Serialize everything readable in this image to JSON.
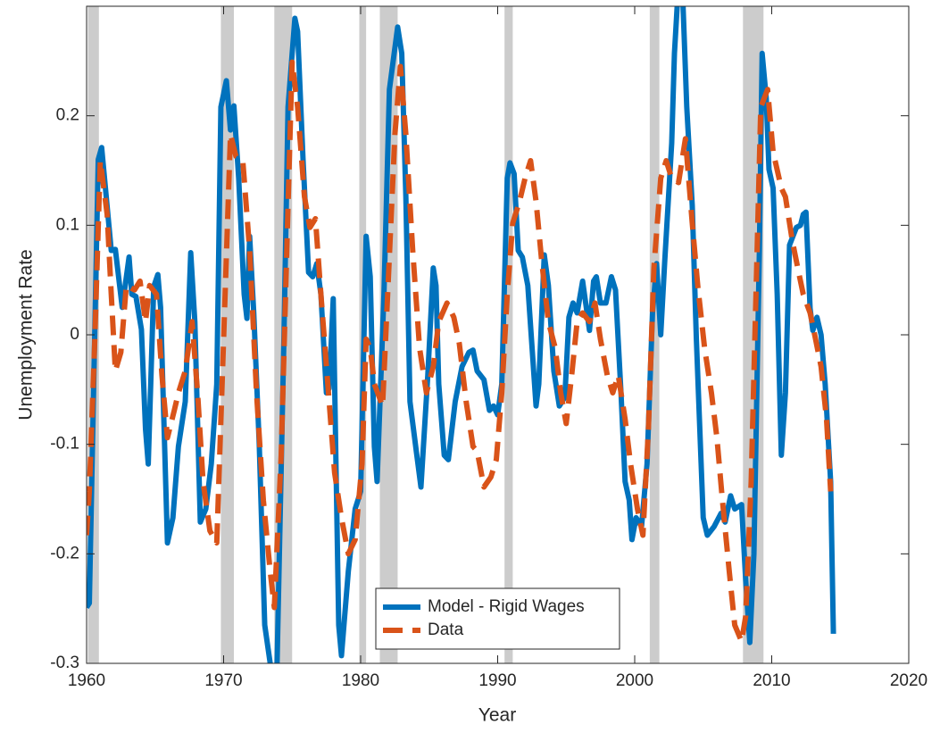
{
  "chart_data": {
    "type": "line",
    "xlabel": "Year",
    "ylabel": "Unemployment Rate",
    "xlim": [
      1960,
      2020
    ],
    "ylim": [
      -0.3,
      0.3
    ],
    "xticks": [
      1960,
      1970,
      1980,
      1990,
      2000,
      2010,
      2020
    ],
    "yticks": [
      -0.3,
      -0.2,
      -0.1,
      0,
      0.1,
      0.2
    ],
    "legend": "lower center",
    "recession_color": "#cccccc",
    "recessions": [
      [
        1960.1,
        1960.9
      ],
      [
        1969.8,
        1970.75
      ],
      [
        1973.7,
        1975.0
      ],
      [
        1979.9,
        1980.4
      ],
      [
        1981.4,
        1982.7
      ],
      [
        1990.5,
        1991.1
      ],
      [
        2001.1,
        2001.8
      ],
      [
        2007.9,
        2009.4
      ]
    ],
    "series": [
      {
        "name": "Model - Rigid Wages",
        "color": "#0072bd",
        "dash": false,
        "x": [
          1960,
          1960.2,
          1960.85,
          1961.1,
          1961.8,
          1962.1,
          1962.6,
          1963.1,
          1963.3,
          1963.6,
          1964.0,
          1964.3,
          1964.5,
          1964.9,
          1965.2,
          1965.4,
          1965.9,
          1966.3,
          1966.7,
          1967.2,
          1967.6,
          1967.9,
          1968.3,
          1968.7,
          1969.1,
          1969.5,
          1969.8,
          1970.2,
          1970.5,
          1970.75,
          1971.1,
          1971.5,
          1971.7,
          1971.9,
          1972.2,
          1972.6,
          1973.0,
          1973.4,
          1973.6,
          1973.9,
          1974.4,
          1974.7,
          1975.2,
          1975.4,
          1975.8,
          1976.2,
          1976.5,
          1976.8,
          1977.1,
          1977.5,
          1977.7,
          1978.0,
          1978.2,
          1978.4,
          1978.6,
          1979.1,
          1979.6,
          1980.0,
          1980.4,
          1980.7,
          1981.0,
          1981.2,
          1981.7,
          1982.1,
          1982.7,
          1983.0,
          1983.3,
          1983.6,
          1984.1,
          1984.4,
          1984.9,
          1985.3,
          1985.5,
          1985.7,
          1986.1,
          1986.4,
          1986.9,
          1987.4,
          1987.9,
          1988.2,
          1988.5,
          1989.0,
          1989.4,
          1989.7,
          1990.0,
          1990.3,
          1990.7,
          1990.9,
          1991.2,
          1991.5,
          1991.8,
          1992.2,
          1992.8,
          1993.0,
          1993.4,
          1993.7,
          1994.1,
          1994.5,
          1994.9,
          1995.2,
          1995.5,
          1995.8,
          1996.2,
          1996.7,
          1997.0,
          1997.2,
          1997.5,
          1997.9,
          1998.3,
          1998.6,
          1999.0,
          1999.3,
          1999.6,
          1999.8,
          2000.1,
          2000.5,
          2000.9,
          2001.3,
          2001.6,
          2001.9,
          2002.2,
          2002.7,
          2002.9,
          2003.1,
          2003.5,
          2003.8,
          2004.2,
          2004.5,
          2004.8,
          2005.0,
          2005.3,
          2005.8,
          2006.3,
          2006.6,
          2007.0,
          2007.3,
          2007.8,
          2008.1,
          2008.4,
          2008.7,
          2009.1,
          2009.3,
          2009.6,
          2009.8,
          2010.1,
          2010.4,
          2010.7,
          2011.0,
          2011.3,
          2011.8,
          2012.1,
          2012.3,
          2012.5,
          2012.8,
          2013.0,
          2013.3,
          2013.6,
          2013.9,
          2014.3,
          2014.5
        ],
        "values": [
          -0.249,
          -0.245,
          0.16,
          0.171,
          0.077,
          0.078,
          0.025,
          0.071,
          0.037,
          0.035,
          0.005,
          -0.086,
          -0.118,
          0.044,
          0.055,
          0.025,
          -0.19,
          -0.167,
          -0.102,
          -0.061,
          0.075,
          0.012,
          -0.171,
          -0.159,
          -0.118,
          -0.045,
          0.208,
          0.232,
          0.187,
          0.209,
          0.143,
          0.037,
          0.015,
          0.09,
          0.02,
          -0.1,
          -0.265,
          -0.3,
          -0.31,
          -0.3,
          -0.004,
          0.208,
          0.289,
          0.277,
          0.159,
          0.057,
          0.053,
          0.065,
          0.037,
          -0.053,
          -0.049,
          0.033,
          -0.118,
          -0.265,
          -0.293,
          -0.216,
          -0.159,
          -0.143,
          0.09,
          0.053,
          -0.102,
          -0.134,
          0.037,
          0.224,
          0.281,
          0.257,
          0.126,
          -0.061,
          -0.11,
          -0.139,
          -0.037,
          0.061,
          0.045,
          -0.045,
          -0.11,
          -0.114,
          -0.061,
          -0.029,
          -0.016,
          -0.014,
          -0.033,
          -0.041,
          -0.069,
          -0.065,
          -0.073,
          -0.045,
          0.143,
          0.157,
          0.147,
          0.077,
          0.071,
          0.045,
          -0.065,
          -0.045,
          0.073,
          0.045,
          -0.033,
          -0.065,
          -0.057,
          0.016,
          0.029,
          0.02,
          0.049,
          0.004,
          0.049,
          0.053,
          0.029,
          0.029,
          0.053,
          0.041,
          -0.053,
          -0.134,
          -0.151,
          -0.187,
          -0.167,
          -0.175,
          -0.118,
          0.02,
          0.065,
          0.0,
          0.069,
          0.175,
          0.257,
          0.3,
          0.31,
          0.208,
          0.118,
          -0.004,
          -0.102,
          -0.167,
          -0.183,
          -0.175,
          -0.163,
          -0.171,
          -0.147,
          -0.159,
          -0.155,
          -0.224,
          -0.281,
          -0.2,
          0.077,
          0.257,
          0.216,
          0.151,
          0.134,
          0.037,
          -0.11,
          -0.053,
          0.082,
          0.098,
          0.1,
          0.11,
          0.112,
          0.024,
          0.004,
          0.016,
          0.0,
          -0.045,
          -0.134,
          -0.273
        ]
      },
      {
        "name": "Data",
        "color": "#d95319",
        "dash": true,
        "x": [
          1960,
          1960.2,
          1960.6,
          1961.0,
          1961.5,
          1961.8,
          1962.1,
          1962.5,
          1962.9,
          1963.5,
          1963.9,
          1964.3,
          1964.6,
          1965.1,
          1965.5,
          1965.9,
          1966.4,
          1966.7,
          1967.2,
          1967.7,
          1968.1,
          1968.5,
          1969.0,
          1969.5,
          1970.0,
          1970.5,
          1970.9,
          1971.4,
          1971.9,
          1972.4,
          1972.9,
          1973.4,
          1973.7,
          1974.2,
          1974.7,
          1975.0,
          1975.4,
          1975.9,
          1976.3,
          1976.7,
          1977.1,
          1977.7,
          1978.1,
          1978.6,
          1979.1,
          1979.6,
          1980.1,
          1980.4,
          1980.7,
          1981.0,
          1981.6,
          1982.0,
          1982.5,
          1982.9,
          1983.3,
          1983.8,
          1984.3,
          1984.8,
          1985.3,
          1985.7,
          1986.3,
          1986.8,
          1987.2,
          1987.7,
          1988.2,
          1988.5,
          1989.0,
          1989.5,
          1989.9,
          1990.3,
          1990.7,
          1991.1,
          1991.6,
          1992.0,
          1992.4,
          1992.8,
          1993.2,
          1993.7,
          1994.2,
          1994.6,
          1995.0,
          1995.4,
          1995.8,
          1996.2,
          1996.7,
          1997.1,
          1997.5,
          1998.0,
          1998.4,
          1998.8,
          1999.3,
          1999.7,
          2000.2,
          2000.6,
          2001.0,
          2001.4,
          2001.9,
          2002.3,
          2002.7,
          2003.2,
          2003.7,
          2004.2,
          2004.6,
          2005.1,
          2005.6,
          2006.0,
          2006.4,
          2006.9,
          2007.3,
          2007.8,
          2008.1,
          2008.5,
          2008.9,
          2009.2,
          2009.7,
          2010.1,
          2010.7,
          2011.0,
          2011.5,
          2011.9,
          2012.3,
          2012.8,
          2013.2,
          2013.6,
          2014.0,
          2014.3
        ],
        "values": [
          -0.183,
          -0.143,
          -0.004,
          0.159,
          0.11,
          0.037,
          -0.033,
          -0.016,
          0.045,
          0.041,
          0.049,
          0.012,
          0.045,
          0.037,
          -0.037,
          -0.094,
          -0.069,
          -0.053,
          -0.033,
          0.012,
          -0.053,
          -0.134,
          -0.179,
          -0.19,
          -0.004,
          0.183,
          0.163,
          0.159,
          0.077,
          -0.053,
          -0.151,
          -0.216,
          -0.249,
          -0.11,
          0.118,
          0.249,
          0.208,
          0.126,
          0.098,
          0.106,
          0.037,
          -0.061,
          -0.126,
          -0.167,
          -0.2,
          -0.187,
          -0.118,
          -0.004,
          -0.012,
          -0.045,
          -0.065,
          0.045,
          0.183,
          0.245,
          0.183,
          0.077,
          -0.012,
          -0.053,
          -0.029,
          0.012,
          0.029,
          0.016,
          -0.008,
          -0.061,
          -0.102,
          -0.106,
          -0.139,
          -0.13,
          -0.114,
          -0.053,
          0.037,
          0.102,
          0.122,
          0.143,
          0.159,
          0.122,
          0.069,
          0.012,
          -0.012,
          -0.053,
          -0.081,
          -0.037,
          0.012,
          0.02,
          0.012,
          0.029,
          -0.004,
          -0.037,
          -0.053,
          -0.037,
          -0.077,
          -0.118,
          -0.159,
          -0.183,
          -0.086,
          0.061,
          0.143,
          0.159,
          0.143,
          0.139,
          0.179,
          0.102,
          0.045,
          -0.012,
          -0.053,
          -0.094,
          -0.151,
          -0.216,
          -0.265,
          -0.28,
          -0.257,
          -0.134,
          0.061,
          0.208,
          0.224,
          0.167,
          0.134,
          0.126,
          0.086,
          0.061,
          0.037,
          0.02,
          -0.004,
          -0.029,
          -0.077,
          -0.143
        ]
      }
    ]
  }
}
